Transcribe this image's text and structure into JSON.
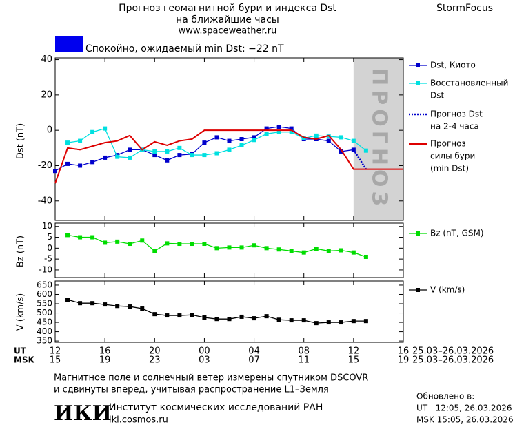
{
  "header": {
    "title": "Прогноз геомагнитной бури и индекса Dst",
    "subtitle": "на ближайшие часы",
    "url": "www.spaceweather.ru",
    "brand": "StormFocus"
  },
  "status": {
    "color": "#0000ee",
    "text": "Спокойно, ожидаемый min Dst: −22 nT"
  },
  "chart_data": [
    {
      "type": "line",
      "y_label": "Dst (nT)",
      "xlim": [
        12,
        40
      ],
      "ylim": [
        -51,
        41
      ],
      "yticks": [
        40,
        20,
        0,
        -20,
        -40
      ],
      "forecast_region": {
        "xlim": [
          36,
          40
        ],
        "label": "ПРОГНОЗ",
        "color": "#d3d3d3"
      },
      "series": [
        {
          "name": [
            "Dst, Киото"
          ],
          "color": "#0000cc",
          "marker": true,
          "dash": "solid",
          "x": [
            12,
            13,
            14,
            15,
            16,
            17,
            18,
            19,
            20,
            21,
            22,
            23,
            24,
            25,
            26,
            27,
            28,
            29,
            30,
            31,
            32,
            33,
            34,
            35,
            36
          ],
          "values": [
            -23,
            -19,
            -20,
            -18,
            -15.5,
            -14,
            -11,
            -11,
            -14,
            -17,
            -14,
            -13.5,
            -7,
            -4,
            -6,
            -5,
            -4,
            1,
            2,
            1,
            -5,
            -5,
            -6,
            -12,
            -11
          ]
        },
        {
          "name": [
            "Восстановленный",
            "Dst"
          ],
          "color": "#00e0e0",
          "marker": true,
          "dash": "solid",
          "x": [
            13,
            14,
            15,
            16,
            17,
            18,
            19,
            20,
            21,
            22,
            23,
            24,
            25,
            26,
            27,
            28,
            29,
            30,
            31,
            32,
            33,
            34,
            35,
            36,
            37
          ],
          "values": [
            -7,
            -6,
            -1,
            1,
            -15,
            -15.5,
            -11,
            -12,
            -12,
            -10,
            -14,
            -14,
            -13,
            -11,
            -8.5,
            -5.5,
            -2,
            -1,
            -1,
            -4.5,
            -3,
            -3.5,
            -4,
            -6,
            -11.5
          ]
        },
        {
          "name": [
            "Прогноз Dst",
            "на 2-4 часа"
          ],
          "color": "#0000cc",
          "marker": false,
          "dash": "dotted",
          "x": [
            36,
            37
          ],
          "values": [
            -11,
            -22
          ]
        },
        {
          "name": [
            "Прогноз",
            "силы бури",
            "(min Dst)"
          ],
          "color": "#dd0000",
          "marker": false,
          "dash": "solid",
          "x": [
            12,
            13,
            14,
            15,
            16,
            17,
            18,
            19,
            20,
            21,
            22,
            23,
            24,
            31,
            32,
            33,
            34,
            35,
            36,
            40
          ],
          "values": [
            -30,
            -10,
            -11,
            -9,
            -7,
            -6,
            -3,
            -11,
            -6.5,
            -8.5,
            -6,
            -5,
            0,
            0,
            -4,
            -5,
            -3,
            -11,
            -22,
            -22
          ]
        }
      ]
    },
    {
      "type": "line",
      "y_label": "Bz (nT)",
      "xlim": [
        12,
        40
      ],
      "ylim": [
        -13.5,
        11.5
      ],
      "yticks": [
        10,
        5,
        0,
        -5,
        -10
      ],
      "series": [
        {
          "name": [
            "Bz (nT, GSM)"
          ],
          "color": "#00dd00",
          "marker": true,
          "dash": "solid",
          "x": [
            13,
            14,
            15,
            16,
            17,
            18,
            19,
            20,
            21,
            22,
            23,
            24,
            25,
            26,
            27,
            28,
            29,
            30,
            31,
            32,
            33,
            34,
            35,
            36,
            37
          ],
          "values": [
            6,
            5,
            5,
            2.5,
            3,
            2,
            3.5,
            -1.3,
            2.2,
            2,
            2,
            2,
            0,
            0.3,
            0.3,
            1.3,
            0,
            -0.6,
            -1.3,
            -2,
            -0.3,
            -1.3,
            -1,
            -2,
            -4
          ]
        }
      ]
    },
    {
      "type": "line",
      "y_label": "V (km/s)",
      "xlim": [
        12,
        40
      ],
      "ylim": [
        343,
        672
      ],
      "yticks": [
        650,
        600,
        550,
        500,
        450,
        400,
        350
      ],
      "xticks": [
        {
          "value": 12,
          "label": "12"
        },
        {
          "value": 16,
          "label": "16"
        },
        {
          "value": 20,
          "label": "20"
        },
        {
          "value": 24,
          "label": "00"
        },
        {
          "value": 28,
          "label": "04"
        },
        {
          "value": 32,
          "label": "08"
        },
        {
          "value": 36,
          "label": "12"
        },
        {
          "value": 40,
          "label": "16"
        }
      ],
      "msk_tick_labels": [
        "15",
        "19",
        "23",
        "03",
        "07",
        "11",
        "15",
        "19"
      ],
      "row_labels": [
        "UT",
        "MSK"
      ],
      "date_range": "25.03–26.03.2026",
      "series": [
        {
          "name": [
            "V (km/s)"
          ],
          "color": "#000000",
          "marker": true,
          "dash": "solid",
          "x": [
            13,
            14,
            15,
            16,
            17,
            18,
            19,
            20,
            21,
            22,
            23,
            24,
            25,
            26,
            27,
            28,
            29,
            30,
            31,
            32,
            33,
            34,
            35,
            36,
            37
          ],
          "values": [
            572,
            553,
            553,
            546,
            538,
            535,
            524,
            494,
            487,
            487,
            490,
            476,
            468,
            468,
            480,
            472,
            483,
            464,
            461,
            461,
            446,
            450,
            450,
            457,
            457
          ]
        }
      ]
    }
  ],
  "note": [
    "Магнитное поле и солнечный ветер измерены спутником DSCOVR",
    "и сдвинуты вперед, учитывая распространение L1–Земля"
  ],
  "footer": {
    "logo": "ИКИ",
    "institute": "Институт космических исследований РАН",
    "site": "iki.cosmos.ru",
    "updated": [
      "Обновлено в:",
      "UT   12:05, 26.03.2026",
      "MSK 15:05, 26.03.2026"
    ]
  }
}
